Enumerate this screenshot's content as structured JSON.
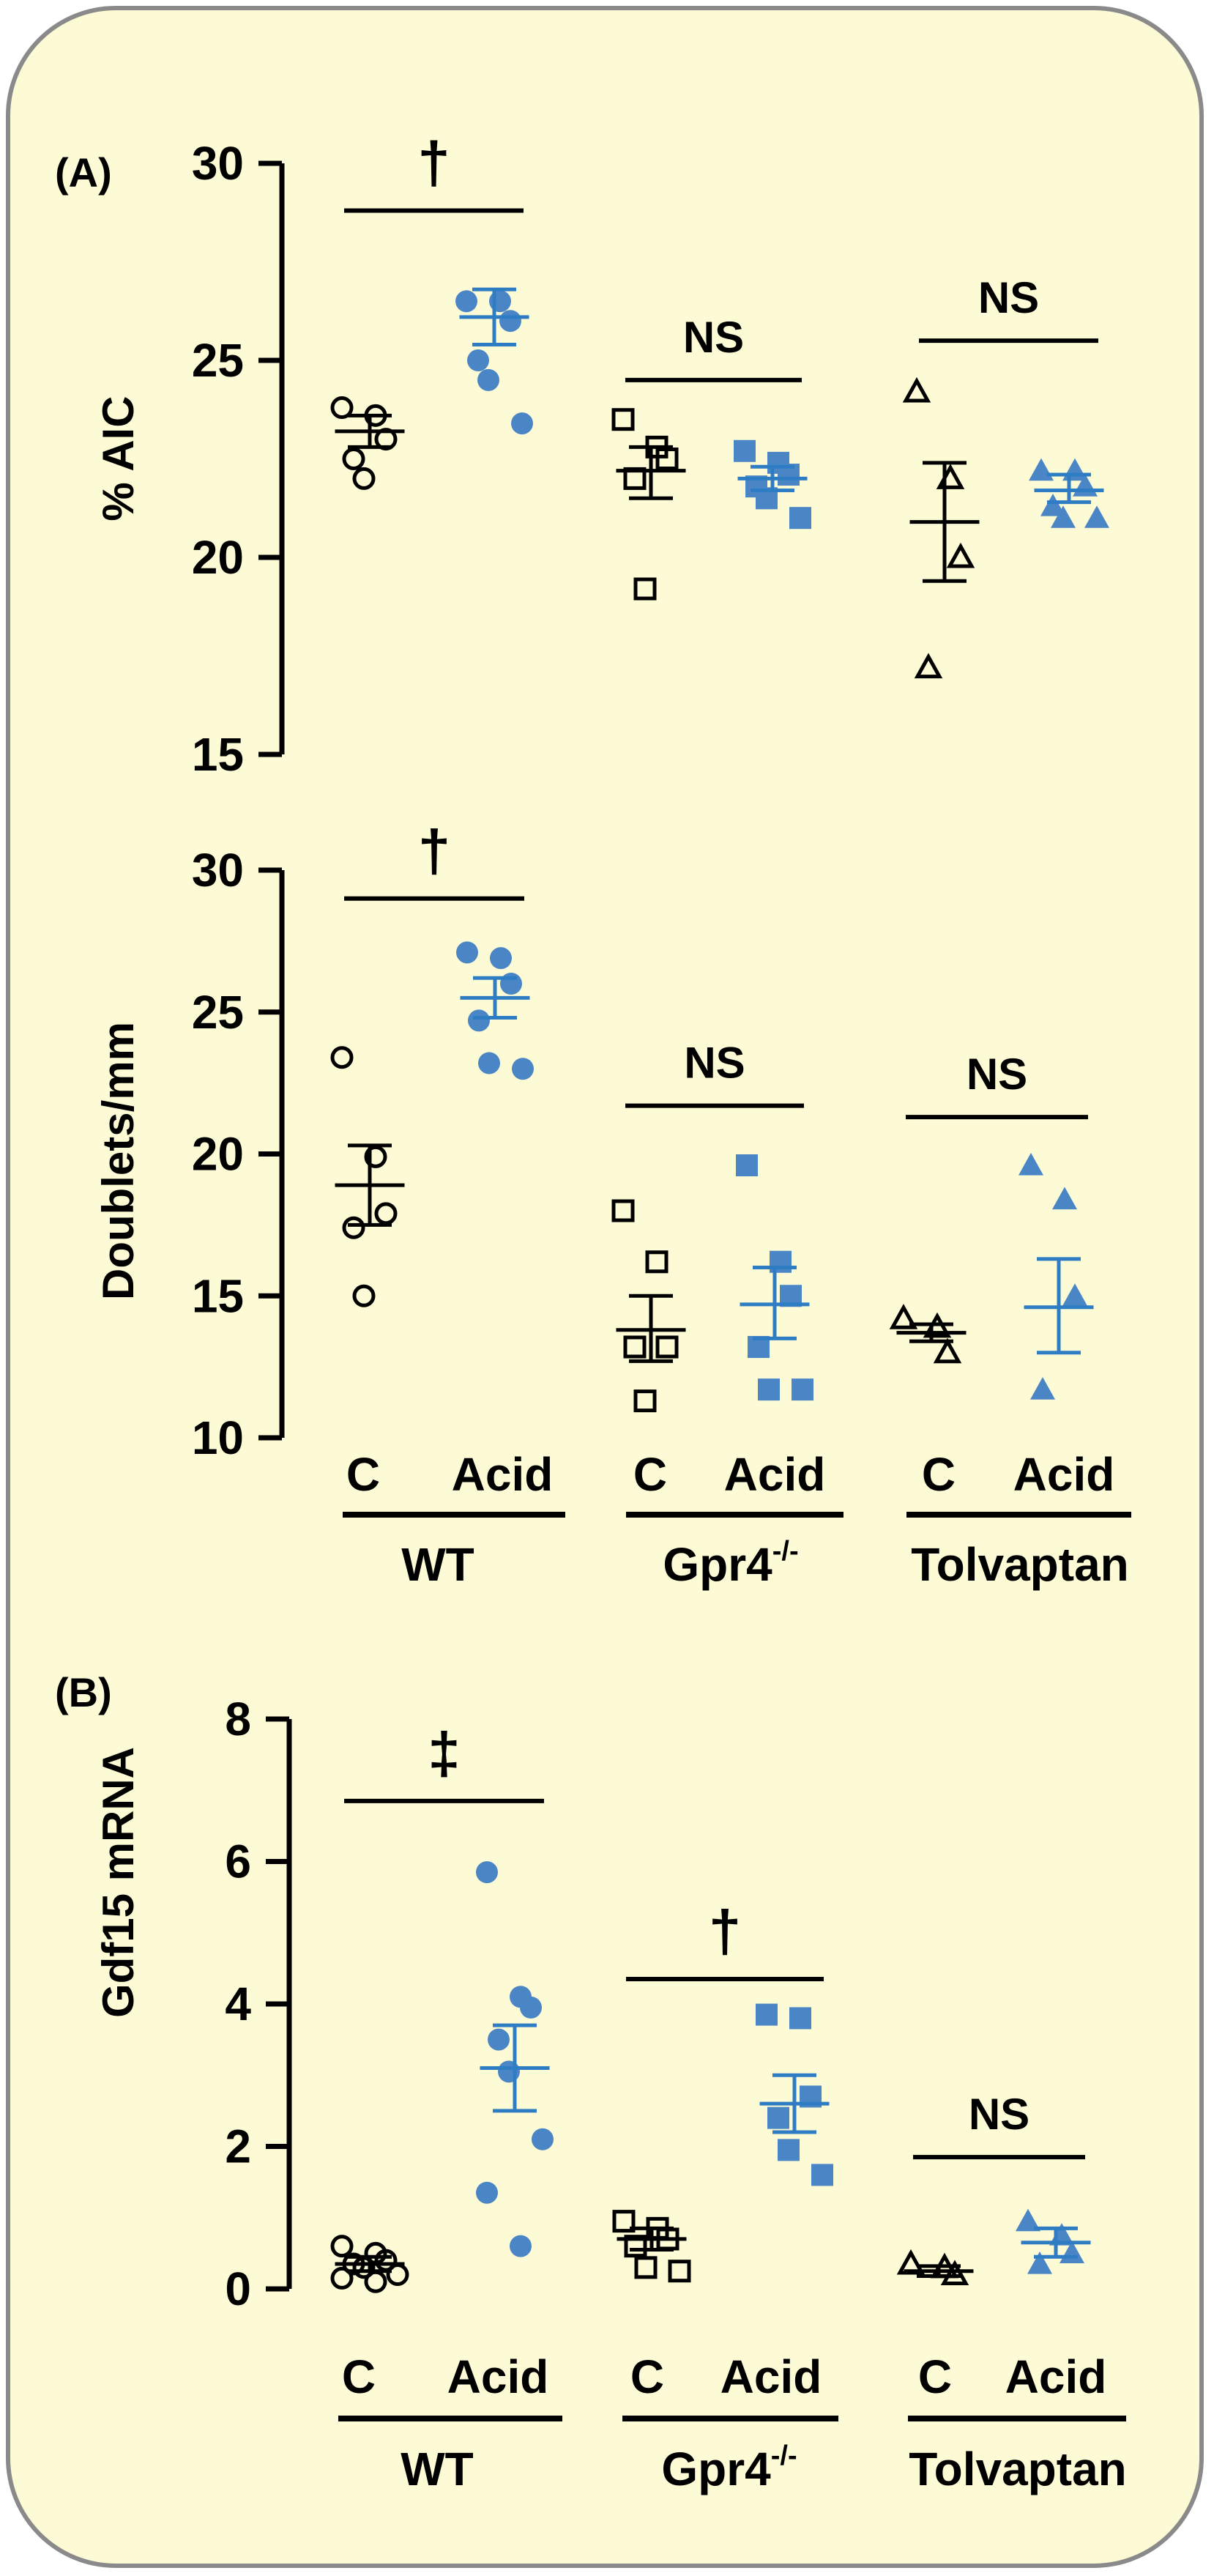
{
  "colors": {
    "background": "#fdfbd5",
    "border": "#8a8a8a",
    "control": "#000000",
    "acid": "#4a86c6",
    "acid_line": "#2e7dc4"
  },
  "panels": [
    {
      "id": "A1",
      "label": "(A)",
      "ylabel": "% AIC"
    },
    {
      "id": "A2",
      "label": "",
      "ylabel": "Doublets/mm"
    },
    {
      "id": "B",
      "label": "(B)",
      "ylabel": "Gdf15 mRNA"
    }
  ],
  "group_labels": {
    "top": [
      {
        "c": "C",
        "acid": "Acid",
        "group": "WT"
      },
      {
        "c": "C",
        "acid": "Acid",
        "group": "Gpr4",
        "sup": "-/-"
      },
      {
        "c": "C",
        "acid": "Acid",
        "group": "Tolvaptan"
      }
    ],
    "bottom": [
      {
        "c": "C",
        "acid": "Acid",
        "group": "WT"
      },
      {
        "c": "C",
        "acid": "Acid",
        "group": "Gpr4",
        "sup": "-/-"
      },
      {
        "c": "C",
        "acid": "Acid",
        "group": "Tolvaptan"
      }
    ]
  },
  "chart_data": [
    {
      "type": "scatter",
      "ylabel": "% AIC",
      "ylim": [
        15,
        30
      ],
      "yticks": [
        "15",
        "20",
        "25",
        "30"
      ],
      "groups": [
        "WT",
        "Gpr4-/-",
        "Tolvaptan"
      ],
      "conditions": [
        "C",
        "Acid"
      ],
      "series": [
        {
          "group": "WT",
          "condition": "C",
          "marker": "open-circle",
          "points": [
            23.8,
            23.6,
            23.0,
            22.5,
            22.0
          ],
          "mean": 23.2,
          "sem_low": 22.8,
          "sem_high": 23.6
        },
        {
          "group": "WT",
          "condition": "Acid",
          "marker": "filled-circle",
          "points": [
            26.5,
            26.5,
            26.0,
            25.0,
            24.5,
            23.4
          ],
          "mean": 26.1,
          "sem_low": 25.4,
          "sem_high": 26.8
        },
        {
          "group": "Gpr4-/-",
          "condition": "C",
          "marker": "open-square",
          "points": [
            23.5,
            22.8,
            22.5,
            22.0,
            19.2
          ],
          "mean": 22.2,
          "sem_low": 21.5,
          "sem_high": 22.8
        },
        {
          "group": "Gpr4-/-",
          "condition": "Acid",
          "marker": "filled-square",
          "points": [
            22.7,
            22.4,
            22.1,
            21.8,
            21.5,
            21.0
          ],
          "mean": 22.0,
          "sem_low": 21.7,
          "sem_high": 22.3
        },
        {
          "group": "Tolvaptan",
          "condition": "C",
          "marker": "open-triangle",
          "points": [
            24.2,
            22.0,
            20.0,
            17.2
          ],
          "mean": 20.9,
          "sem_low": 19.4,
          "sem_high": 22.4
        },
        {
          "group": "Tolvaptan",
          "condition": "Acid",
          "marker": "filled-triangle",
          "points": [
            22.2,
            22.2,
            21.8,
            21.3,
            21.0,
            21.0
          ],
          "mean": 21.7,
          "sem_low": 21.4,
          "sem_high": 22.1
        }
      ],
      "significance": [
        {
          "group": "WT",
          "symbol": "†",
          "y": 28.8
        },
        {
          "group": "Gpr4-/-",
          "symbol": "NS",
          "y": 24.5
        },
        {
          "group": "Tolvaptan",
          "symbol": "NS",
          "y": 25.5
        }
      ]
    },
    {
      "type": "scatter",
      "ylabel": "Doublets/mm",
      "ylim": [
        10,
        30
      ],
      "yticks": [
        "10",
        "15",
        "20",
        "25",
        "30"
      ],
      "groups": [
        "WT",
        "Gpr4-/-",
        "Tolvaptan"
      ],
      "conditions": [
        "C",
        "Acid"
      ],
      "series": [
        {
          "group": "WT",
          "condition": "C",
          "marker": "open-circle",
          "points": [
            23.4,
            19.9,
            17.9,
            17.4,
            15.0
          ],
          "mean": 18.9,
          "sem_low": 17.5,
          "sem_high": 20.3
        },
        {
          "group": "WT",
          "condition": "Acid",
          "marker": "filled-circle",
          "points": [
            27.1,
            26.9,
            26.0,
            24.7,
            23.2,
            23.0
          ],
          "mean": 25.5,
          "sem_low": 24.8,
          "sem_high": 26.2
        },
        {
          "group": "Gpr4-/-",
          "condition": "C",
          "marker": "open-square",
          "points": [
            18.0,
            16.2,
            13.2,
            13.2,
            11.3
          ],
          "mean": 13.8,
          "sem_low": 12.7,
          "sem_high": 15.0
        },
        {
          "group": "Gpr4-/-",
          "condition": "Acid",
          "marker": "filled-square",
          "points": [
            19.6,
            16.2,
            15.0,
            13.2,
            11.7,
            11.7
          ],
          "mean": 14.7,
          "sem_low": 13.5,
          "sem_high": 16.0
        },
        {
          "group": "Tolvaptan",
          "condition": "C",
          "marker": "open-triangle",
          "points": [
            14.2,
            13.9,
            13.0
          ],
          "mean": 13.7,
          "sem_low": 13.4,
          "sem_high": 14.0
        },
        {
          "group": "Tolvaptan",
          "condition": "Acid",
          "marker": "filled-triangle",
          "points": [
            19.6,
            18.4,
            15.0,
            11.7
          ],
          "mean": 14.6,
          "sem_low": 13.0,
          "sem_high": 16.3
        }
      ],
      "significance": [
        {
          "group": "WT",
          "symbol": "†",
          "y": 29.0
        },
        {
          "group": "Gpr4-/-",
          "symbol": "NS",
          "y": 21.7
        },
        {
          "group": "Tolvaptan",
          "symbol": "NS",
          "y": 21.3
        }
      ]
    },
    {
      "type": "scatter",
      "ylabel": "Gdf15 mRNA",
      "ylim": [
        0,
        8
      ],
      "yticks": [
        "0",
        "2",
        "4",
        "6",
        "8"
      ],
      "groups": [
        "WT",
        "Gpr4-/-",
        "Tolvaptan"
      ],
      "conditions": [
        "C",
        "Acid"
      ],
      "series": [
        {
          "group": "WT",
          "condition": "C",
          "marker": "open-circle",
          "points": [
            0.6,
            0.5,
            0.4,
            0.35,
            0.3,
            0.2,
            0.15,
            0.1
          ],
          "mean": 0.35,
          "sem_low": 0.25,
          "sem_high": 0.45
        },
        {
          "group": "WT",
          "condition": "Acid",
          "marker": "filled-circle",
          "points": [
            5.85,
            4.1,
            3.95,
            3.5,
            3.05,
            2.1,
            1.35,
            0.6
          ],
          "mean": 3.1,
          "sem_low": 2.5,
          "sem_high": 3.7
        },
        {
          "group": "Gpr4-/-",
          "condition": "C",
          "marker": "open-square",
          "points": [
            0.95,
            0.85,
            0.7,
            0.6,
            0.3,
            0.25
          ],
          "mean": 0.7,
          "sem_low": 0.55,
          "sem_high": 0.85
        },
        {
          "group": "Gpr4-/-",
          "condition": "Acid",
          "marker": "filled-square",
          "points": [
            3.85,
            3.8,
            2.7,
            2.4,
            1.95,
            1.6
          ],
          "mean": 2.6,
          "sem_low": 2.2,
          "sem_high": 3.0
        },
        {
          "group": "Tolvaptan",
          "condition": "C",
          "marker": "open-triangle",
          "points": [
            0.35,
            0.3,
            0.2
          ],
          "mean": 0.25,
          "sem_low": 0.18,
          "sem_high": 0.32
        },
        {
          "group": "Tolvaptan",
          "condition": "Acid",
          "marker": "filled-triangle",
          "points": [
            0.95,
            0.75,
            0.5,
            0.35
          ],
          "mean": 0.65,
          "sem_low": 0.45,
          "sem_high": 0.85
        }
      ],
      "significance": [
        {
          "group": "WT",
          "symbol": "‡",
          "y": 6.85
        },
        {
          "group": "Gpr4-/-",
          "symbol": "†",
          "y": 4.35
        },
        {
          "group": "Tolvaptan",
          "symbol": "NS",
          "y": 1.85
        }
      ]
    }
  ]
}
